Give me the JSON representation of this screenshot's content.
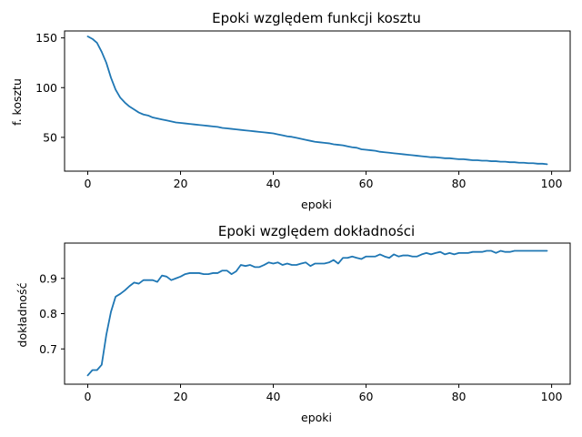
{
  "chart_data": [
    {
      "type": "line",
      "title": "Epoki względem funkcji kosztu",
      "xlabel": "epoki",
      "ylabel": "f. kosztu",
      "xlim": [
        -5,
        104
      ],
      "ylim": [
        16,
        157
      ],
      "xticks": [
        0,
        20,
        40,
        60,
        80,
        100
      ],
      "yticks": [
        50,
        100,
        150
      ],
      "grid": false,
      "color": "#1f77b4",
      "series": [
        {
          "x": [
            0,
            1,
            2,
            3,
            4,
            5,
            6,
            7,
            8,
            9,
            10,
            11,
            12,
            13,
            14,
            15,
            16,
            17,
            18,
            19,
            20,
            21,
            22,
            23,
            24,
            25,
            26,
            27,
            28,
            29,
            30,
            31,
            32,
            33,
            34,
            35,
            36,
            37,
            38,
            39,
            40,
            41,
            42,
            43,
            44,
            45,
            46,
            47,
            48,
            49,
            50,
            51,
            52,
            53,
            54,
            55,
            56,
            57,
            58,
            59,
            60,
            61,
            62,
            63,
            64,
            65,
            66,
            67,
            68,
            69,
            70,
            71,
            72,
            73,
            74,
            75,
            76,
            77,
            78,
            79,
            80,
            81,
            82,
            83,
            84,
            85,
            86,
            87,
            88,
            89,
            90,
            91,
            92,
            93,
            94,
            95,
            96,
            97,
            98,
            99
          ],
          "values": [
            151.5,
            149,
            145,
            136,
            125,
            110,
            98,
            90,
            85,
            81,
            78,
            75,
            73,
            72,
            70,
            69,
            68,
            67,
            66,
            65,
            64.5,
            64,
            63.5,
            63,
            62.5,
            62,
            61.5,
            61,
            60.5,
            59.5,
            59,
            58.5,
            58,
            57.5,
            57,
            56.5,
            56,
            55.5,
            55,
            54.5,
            54,
            53,
            52,
            51,
            50.5,
            49.5,
            48.5,
            47.5,
            46.5,
            45.5,
            45,
            44.5,
            44,
            43,
            42.5,
            42,
            41,
            40,
            39.5,
            38,
            37.5,
            37,
            36.5,
            35.5,
            35,
            34.5,
            34,
            33.5,
            33,
            32.5,
            32,
            31.5,
            31,
            30.5,
            30,
            30,
            29.5,
            29,
            29,
            28.5,
            28,
            28,
            27.5,
            27,
            27,
            26.5,
            26.5,
            26,
            26,
            25.5,
            25.5,
            25,
            25,
            24.5,
            24.5,
            24,
            24,
            23.5,
            23.5,
            23
          ]
        }
      ]
    },
    {
      "type": "line",
      "title": "Epoki względem dokładności",
      "xlabel": "epoki",
      "ylabel": "dokładność",
      "xlim": [
        -5,
        104
      ],
      "ylim": [
        0.6,
        1.0
      ],
      "xticks": [
        0,
        20,
        40,
        60,
        80,
        100
      ],
      "yticks": [
        0.7,
        0.8,
        0.9
      ],
      "grid": false,
      "color": "#1f77b4",
      "series": [
        {
          "x": [
            0,
            1,
            2,
            3,
            4,
            5,
            6,
            7,
            8,
            9,
            10,
            11,
            12,
            13,
            14,
            15,
            16,
            17,
            18,
            19,
            20,
            21,
            22,
            23,
            24,
            25,
            26,
            27,
            28,
            29,
            30,
            31,
            32,
            33,
            34,
            35,
            36,
            37,
            38,
            39,
            40,
            41,
            42,
            43,
            44,
            45,
            46,
            47,
            48,
            49,
            50,
            51,
            52,
            53,
            54,
            55,
            56,
            57,
            58,
            59,
            60,
            61,
            62,
            63,
            64,
            65,
            66,
            67,
            68,
            69,
            70,
            71,
            72,
            73,
            74,
            75,
            76,
            77,
            78,
            79,
            80,
            81,
            82,
            83,
            84,
            85,
            86,
            87,
            88,
            89,
            90,
            91,
            92,
            93,
            94,
            95,
            96,
            97,
            98,
            99
          ],
          "values": [
            0.625,
            0.64,
            0.64,
            0.655,
            0.74,
            0.805,
            0.848,
            0.856,
            0.866,
            0.878,
            0.888,
            0.885,
            0.895,
            0.895,
            0.895,
            0.89,
            0.908,
            0.905,
            0.895,
            0.9,
            0.905,
            0.912,
            0.915,
            0.915,
            0.915,
            0.912,
            0.912,
            0.915,
            0.915,
            0.922,
            0.922,
            0.912,
            0.92,
            0.938,
            0.935,
            0.938,
            0.932,
            0.932,
            0.938,
            0.945,
            0.942,
            0.945,
            0.938,
            0.942,
            0.938,
            0.938,
            0.942,
            0.945,
            0.935,
            0.942,
            0.942,
            0.942,
            0.945,
            0.952,
            0.942,
            0.958,
            0.958,
            0.962,
            0.958,
            0.955,
            0.962,
            0.962,
            0.962,
            0.968,
            0.962,
            0.958,
            0.968,
            0.962,
            0.965,
            0.965,
            0.962,
            0.962,
            0.968,
            0.972,
            0.968,
            0.972,
            0.975,
            0.968,
            0.972,
            0.968,
            0.972,
            0.972,
            0.972,
            0.975,
            0.975,
            0.975,
            0.978,
            0.978,
            0.972,
            0.978,
            0.975,
            0.975,
            0.978,
            0.978,
            0.978,
            0.978,
            0.978,
            0.978,
            0.978,
            0.978
          ]
        }
      ]
    }
  ]
}
